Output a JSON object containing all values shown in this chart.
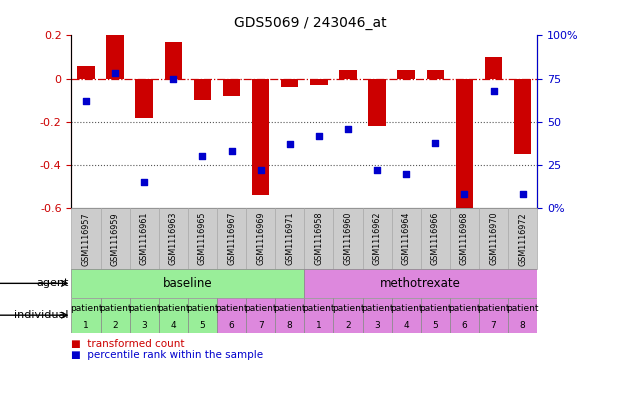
{
  "title": "GDS5069 / 243046_at",
  "samples": [
    "GSM1116957",
    "GSM1116959",
    "GSM1116961",
    "GSM1116963",
    "GSM1116965",
    "GSM1116967",
    "GSM1116969",
    "GSM1116971",
    "GSM1116958",
    "GSM1116960",
    "GSM1116962",
    "GSM1116964",
    "GSM1116966",
    "GSM1116968",
    "GSM1116970",
    "GSM1116972"
  ],
  "bar_values": [
    0.06,
    0.21,
    -0.18,
    0.17,
    -0.1,
    -0.08,
    -0.54,
    -0.04,
    -0.03,
    0.04,
    -0.22,
    0.04,
    0.04,
    -0.6,
    0.1,
    -0.35
  ],
  "dot_values": [
    62,
    78,
    15,
    75,
    30,
    33,
    22,
    37,
    42,
    46,
    22,
    20,
    38,
    8,
    68,
    8
  ],
  "ylim": [
    -0.6,
    0.2
  ],
  "y2lim": [
    0,
    100
  ],
  "yticks": [
    -0.6,
    -0.4,
    -0.2,
    0.0,
    0.2
  ],
  "y2ticks": [
    0,
    25,
    50,
    75,
    100
  ],
  "y2ticklabels": [
    "0%",
    "25%",
    "50%",
    "75%",
    "100%"
  ],
  "bar_color": "#cc0000",
  "dot_color": "#0000cc",
  "hline_color": "#cc0000",
  "dotted_line_color": "#555555",
  "baseline_color": "#99ee99",
  "methotrexate_color": "#dd88dd",
  "gsm_bg_color": "#cccccc",
  "gsm_border_color": "#aaaaaa",
  "agent_label": "agent",
  "individual_label": "individual",
  "baseline_label": "baseline",
  "methotrexate_label": "methotrexate",
  "n_baseline": 8,
  "n_methotrexate": 8,
  "patient_labels_top": [
    "patient",
    "patient",
    "patient",
    "patient",
    "patient",
    "patient",
    "patient",
    "patient",
    "patient",
    "patient",
    "patient",
    "patient",
    "patient",
    "patient",
    "patient",
    "patient"
  ],
  "patient_numbers": [
    "1",
    "2",
    "3",
    "4",
    "5",
    "6",
    "7",
    "8",
    "1",
    "2",
    "3",
    "4",
    "5",
    "6",
    "7",
    "8"
  ],
  "indiv_baseline_colors": [
    "#99ee99",
    "#99ee99",
    "#99ee99",
    "#99ee99",
    "#99ee99",
    "#dd88dd",
    "#dd88dd",
    "#dd88dd"
  ],
  "legend_bar_label": "transformed count",
  "legend_dot_label": "percentile rank within the sample",
  "bar_width": 0.6,
  "title_fontsize": 10,
  "axis_fontsize": 8,
  "label_fontsize": 8,
  "gsm_fontsize": 5.8,
  "patient_fontsize": 6.5,
  "agent_row_fontsize": 8.5,
  "legend_fontsize": 7.5
}
